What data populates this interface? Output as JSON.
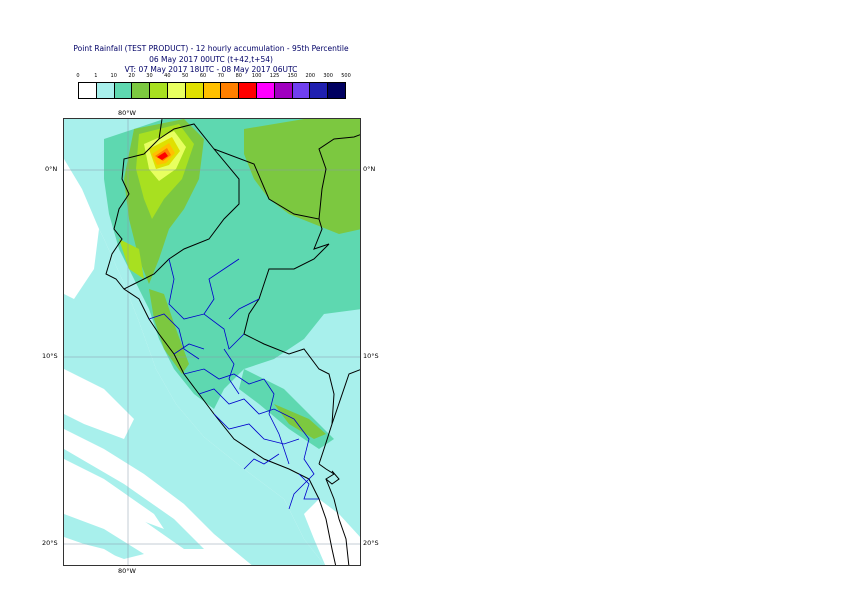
{
  "title": {
    "line1": "Point Rainfall (TEST PRODUCT) - 12 hourly accumulation - 95th Percentile",
    "line2": "06 May 2017 00UTC (t+42,t+54)",
    "line3": "VT: 07 May 2017 18UTC - 08 May 2017 06UTC"
  },
  "legend": {
    "thresholds": [
      "0",
      "1",
      "10",
      "20",
      "30",
      "40",
      "50",
      "60",
      "70",
      "80",
      "100",
      "125",
      "150",
      "200",
      "300",
      "500"
    ],
    "colors": [
      "#ffffff",
      "#a8f0ec",
      "#5ed8b0",
      "#7cc840",
      "#a8e020",
      "#e8ff60",
      "#e0e000",
      "#ffc000",
      "#ff8000",
      "#ff0000",
      "#ff00ff",
      "#a000c0",
      "#7040f0",
      "#2020b0",
      "#000060"
    ]
  },
  "axes": {
    "lon_top": "80°W",
    "lon_bottom": "80°W",
    "lat_labels": [
      "0°N",
      "10°S",
      "20°S"
    ]
  },
  "colors": {
    "coast": "#000000",
    "admin": "#0000cc",
    "grid": "#8899aa"
  }
}
